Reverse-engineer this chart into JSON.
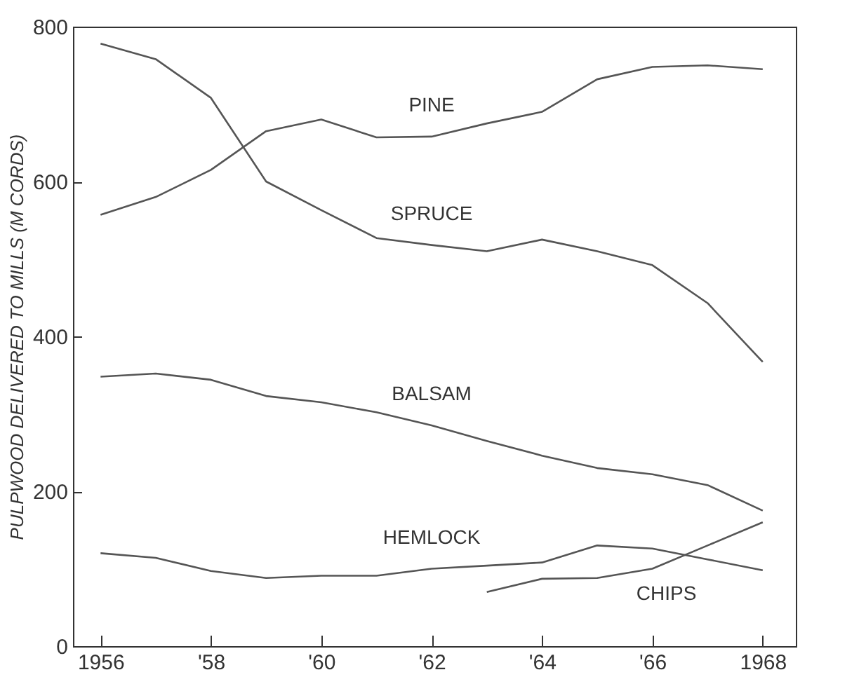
{
  "chart_data": {
    "type": "line",
    "ylabel": "PULPWOOD DELIVERED TO MILLS (M CORDS)",
    "x": [
      1956,
      1957,
      1958,
      1959,
      1960,
      1961,
      1962,
      1963,
      1964,
      1965,
      1966,
      1967,
      1968
    ],
    "xlim": [
      1955.5,
      1968.6
    ],
    "ylim": [
      0,
      800
    ],
    "xticks": [
      1956,
      {
        "value": 1958,
        "label": "'58"
      },
      {
        "value": 1960,
        "label": "'60"
      },
      {
        "value": 1962,
        "label": "'62"
      },
      {
        "value": 1964,
        "label": "'64"
      },
      {
        "value": 1966,
        "label": "'66"
      },
      1968
    ],
    "yticks": [
      0,
      200,
      400,
      600,
      800
    ],
    "grid": false,
    "marker": "none",
    "line_style": "solid",
    "series": [
      {
        "name": "PINE",
        "color": "#555555",
        "values": [
          557,
          580,
          615,
          665,
          680,
          657,
          658,
          675,
          690,
          732,
          748,
          750,
          745
        ]
      },
      {
        "name": "SPRUCE",
        "color": "#555555",
        "values": [
          778,
          758,
          708,
          600,
          563,
          527,
          518,
          510,
          525,
          510,
          492,
          443,
          367
        ]
      },
      {
        "name": "BALSAM",
        "color": "#555555",
        "values": [
          348,
          352,
          344,
          323,
          315,
          302,
          285,
          265,
          246,
          230,
          222,
          208,
          175
        ]
      },
      {
        "name": "HEMLOCK",
        "color": "#555555",
        "values": [
          120,
          114,
          97,
          88,
          91,
          91,
          100,
          104,
          108,
          130,
          126,
          112,
          98
        ]
      },
      {
        "name": "CHIPS",
        "color": "#555555",
        "x": [
          1963,
          1964,
          1965,
          1966,
          1967,
          1968
        ],
        "values": [
          70,
          87,
          88,
          100,
          130,
          160
        ]
      }
    ]
  }
}
